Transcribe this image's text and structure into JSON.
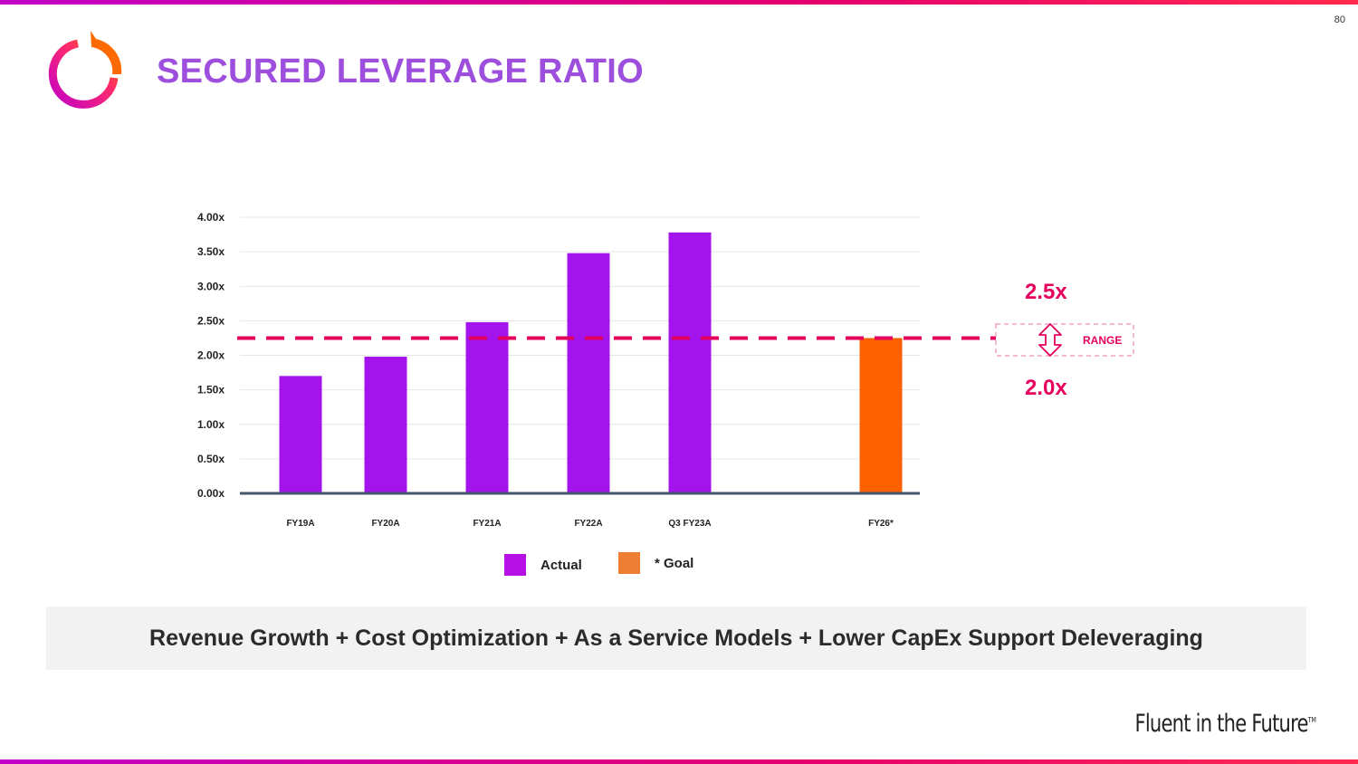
{
  "page_number": "80",
  "title": "SECURED LEVERAGE RATIO",
  "colors": {
    "actual": "#a313ec",
    "goal": "#ff6000",
    "legend_goal": "#ed7d31",
    "accent": "#e6005e",
    "title": "#9d4edd"
  },
  "chart_data": {
    "type": "bar",
    "title": "",
    "xlabel": "",
    "ylabel": "",
    "ylim": [
      0,
      4
    ],
    "y_ticks": [
      {
        "value": 0,
        "label": "0.00x"
      },
      {
        "value": 0.5,
        "label": "0.50x"
      },
      {
        "value": 1.0,
        "label": "1.00x"
      },
      {
        "value": 1.5,
        "label": "1.50x"
      },
      {
        "value": 2.0,
        "label": "2.00x"
      },
      {
        "value": 2.5,
        "label": "2.50x"
      },
      {
        "value": 3.0,
        "label": "3.00x"
      },
      {
        "value": 3.5,
        "label": "3.50x"
      },
      {
        "value": 4.0,
        "label": "4.00x"
      }
    ],
    "categories": [
      "FY19A",
      "FY20A",
      "FY21A",
      "FY22A",
      "Q3 FY23A",
      "FY26*"
    ],
    "values": [
      1.7,
      1.98,
      2.48,
      3.48,
      3.78,
      2.25
    ],
    "series_type": [
      "actual",
      "actual",
      "actual",
      "actual",
      "actual",
      "goal"
    ],
    "target_line": 2.25,
    "range": {
      "upper": "2.5x",
      "lower": "2.0x",
      "label": "RANGE"
    },
    "legend": [
      {
        "label": "Actual",
        "key": "actual"
      },
      {
        "label": "* Goal",
        "key": "goal"
      }
    ]
  },
  "banner_text": "Revenue Growth + Cost Optimization + As a Service Models + Lower CapEx Support Deleveraging",
  "tagline": {
    "text": "Fluent in the Future",
    "mark": "TM"
  }
}
